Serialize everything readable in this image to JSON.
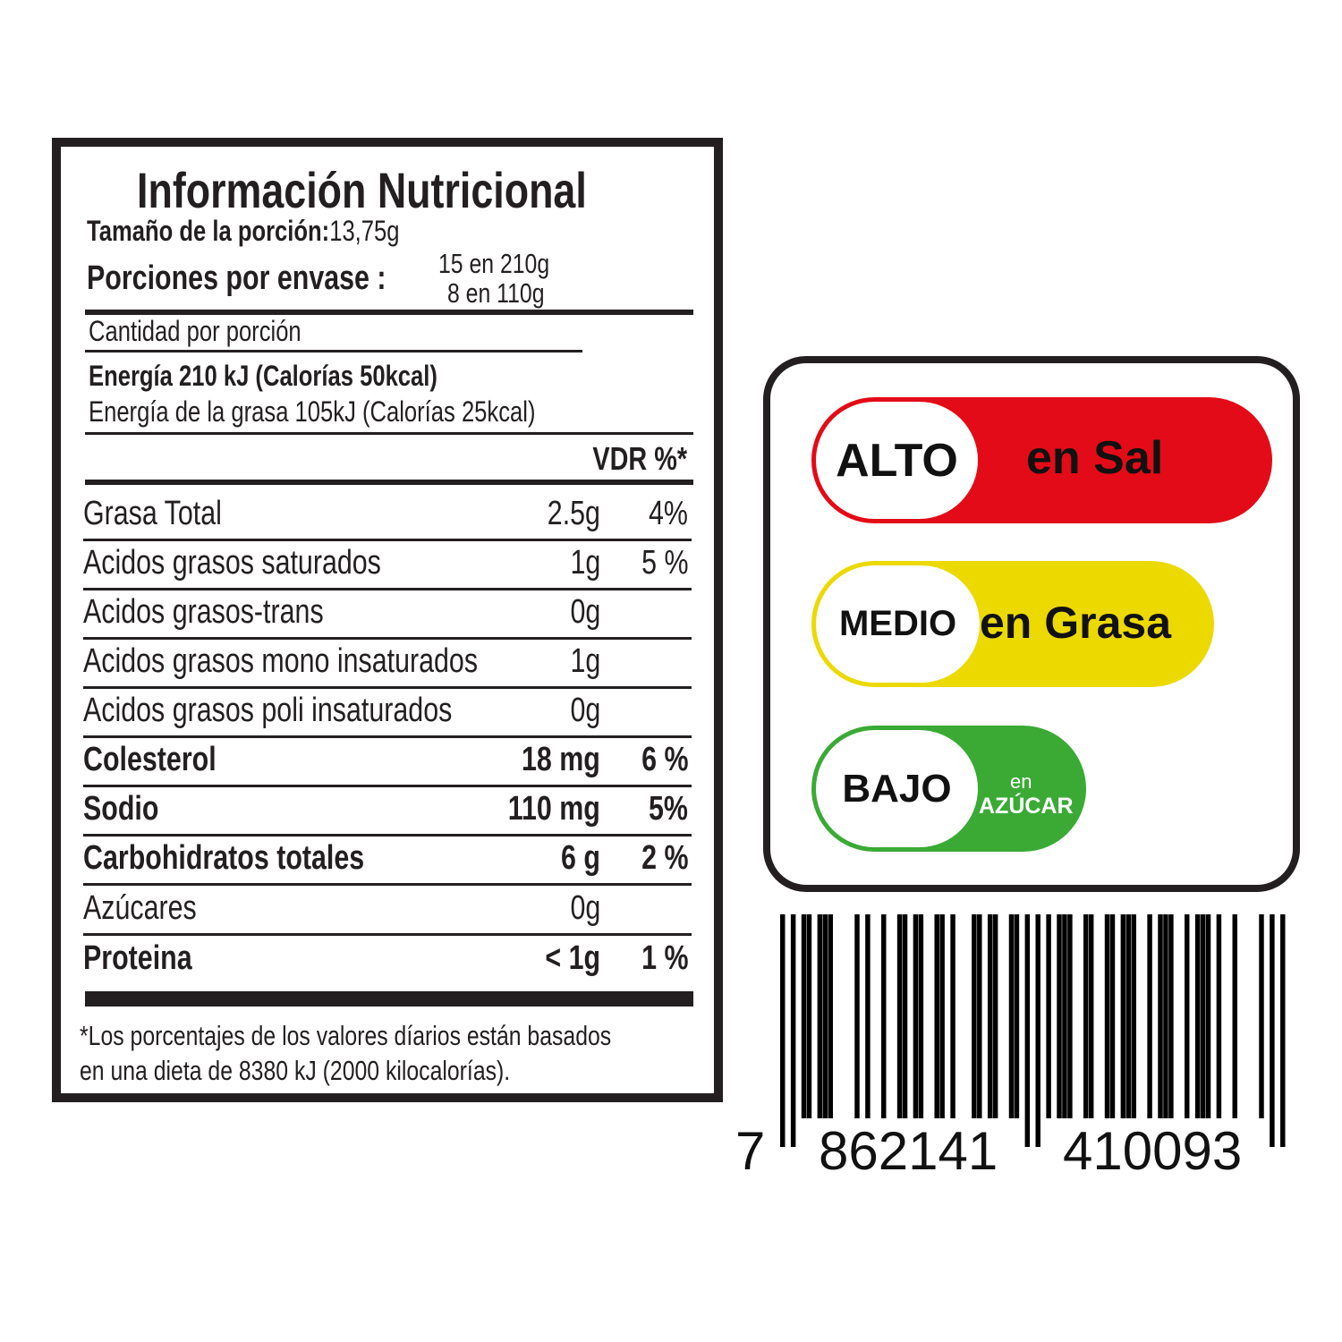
{
  "nutrition": {
    "title": "Información Nutricional",
    "serving_size_label": "Tamaño de la porción:",
    "serving_size_value": "13,75g",
    "servings_label": "Porciones por envase :",
    "servings_values": [
      "15 en 210g",
      "8  en 110g"
    ],
    "amount_per_serving": "Cantidad por porción",
    "energy": "Energía 210 kJ (Calorías 50kcal)",
    "energy_fat": "Energía de la grasa 105kJ (Calorías 25kcal)",
    "dv_header": "VDR %*",
    "rows": [
      {
        "label": "Grasa Total",
        "amount": "2.5g",
        "pct": "4%",
        "bold": false
      },
      {
        "label": "Acidos grasos saturados",
        "amount": "1g",
        "pct": "5 %",
        "bold": false
      },
      {
        "label": "Acidos grasos-trans",
        "amount": "0g",
        "pct": "",
        "bold": false
      },
      {
        "label": "Acidos grasos mono insaturados",
        "amount": "1g",
        "pct": "",
        "bold": false
      },
      {
        "label": "Acidos grasos poli insaturados",
        "amount": "0g",
        "pct": "",
        "bold": false
      },
      {
        "label": "Colesterol",
        "amount": "18 mg",
        "pct": "6 %",
        "bold": true
      },
      {
        "label": "Sodio",
        "amount": "110 mg",
        "pct": "5%",
        "bold": true
      },
      {
        "label": "Carbohidratos totales",
        "amount": "6 g",
        "pct": "2 %",
        "bold": true
      },
      {
        "label": "Azúcares",
        "amount": "0g",
        "pct": "",
        "bold": false
      },
      {
        "label": "Proteina",
        "amount": "< 1g",
        "pct": "1 %",
        "bold": true
      }
    ],
    "footnote_1": "*Los porcentajes de los valores díarios están basados",
    "footnote_2": "en una dieta de 8380 kJ (2000 kilocalorías)."
  },
  "traffic_light": {
    "salt": {
      "level": "ALTO",
      "text": "en Sal",
      "color": "#e30b17"
    },
    "fat": {
      "level": "MEDIO",
      "text": "en Grasa",
      "color": "#ecd900"
    },
    "sugar": {
      "level": "BAJO",
      "text_small": "en",
      "text": "AZÚCAR",
      "color": "#3aaa35"
    }
  },
  "barcode": {
    "first": "7",
    "left": "862141",
    "right": "410093"
  }
}
